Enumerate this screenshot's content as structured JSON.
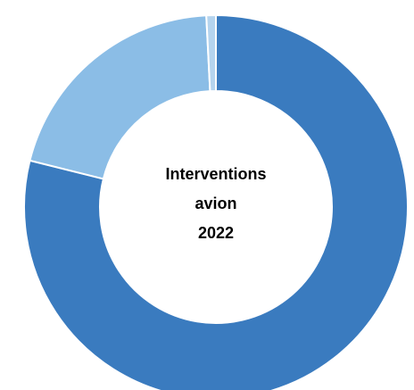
{
  "chart_data": {
    "type": "pie",
    "variant": "donut",
    "center_label": [
      "Interventions",
      "avion",
      "2022"
    ],
    "slices": [
      {
        "value": 78.9,
        "color": "#3a7bbf"
      },
      {
        "value": 20.3,
        "color": "#8bbde6"
      },
      {
        "value": 0.8,
        "color": "#b5d4ee"
      }
    ],
    "start_angle_deg": 0,
    "direction": "clockwise",
    "slice_border_color": "#ffffff",
    "legend": "none"
  }
}
